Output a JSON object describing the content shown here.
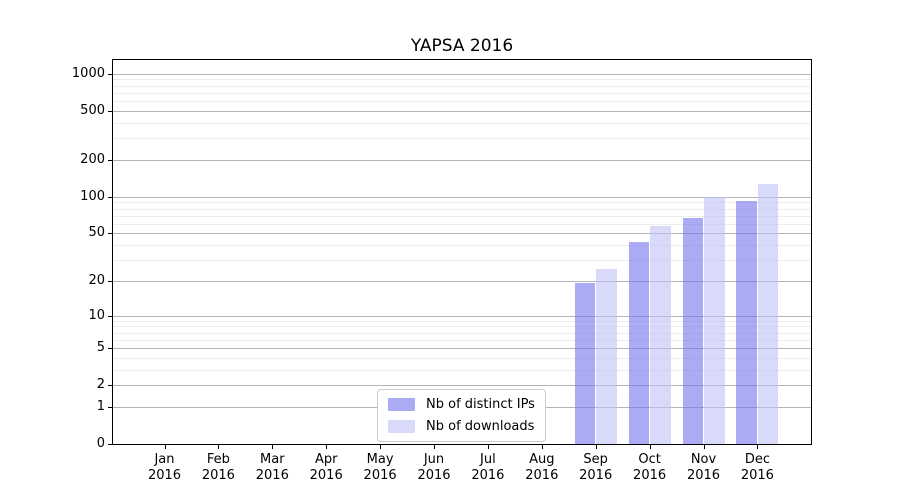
{
  "chart_data": {
    "type": "bar",
    "title": "YAPSA 2016",
    "categories": [
      "Jan",
      "Feb",
      "Mar",
      "Apr",
      "May",
      "Jun",
      "Jul",
      "Aug",
      "Sep",
      "Oct",
      "Nov",
      "Dec"
    ],
    "x_sub_label": "2016",
    "series": [
      {
        "name": "Nb of distinct IPs",
        "color": "rgba(113,113,238,0.6)",
        "values": [
          null,
          null,
          null,
          null,
          null,
          null,
          null,
          null,
          19,
          42,
          67,
          93
        ]
      },
      {
        "name": "Nb of downloads",
        "color": "rgba(192,193,247,0.6)",
        "values": [
          null,
          null,
          null,
          null,
          null,
          null,
          null,
          null,
          25,
          57,
          100,
          127
        ]
      }
    ],
    "y_axis": {
      "scale": "log1p",
      "label_ticks": [
        0,
        1,
        2,
        5,
        10,
        20,
        50,
        100,
        200,
        500,
        1000
      ],
      "minor_ticks": [
        3,
        4,
        6,
        7,
        8,
        9,
        30,
        40,
        60,
        70,
        80,
        90,
        300,
        400,
        600,
        700,
        800,
        900
      ],
      "max": 1292
    },
    "grid": {
      "major_color": "#b4b4b4",
      "minor_color": "#ededed",
      "x_grid": false
    },
    "legend": {
      "position": "bottom-center"
    }
  }
}
